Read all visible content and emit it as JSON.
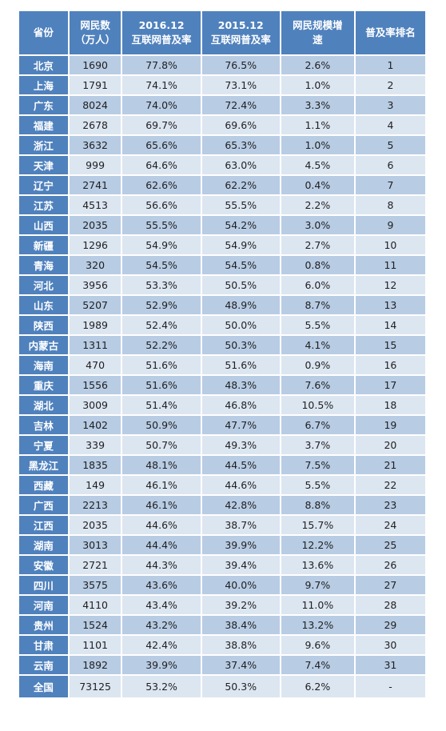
{
  "chart_data": {
    "type": "table",
    "headers": [
      [
        "省份"
      ],
      [
        "网民数",
        "（万人）"
      ],
      [
        "2016.12",
        "互联网普及率"
      ],
      [
        "2015.12",
        "互联网普及率"
      ],
      [
        "网民规模增",
        "速"
      ],
      [
        "普及率排名"
      ]
    ],
    "rows": [
      [
        "北京",
        "1690",
        "77.8%",
        "76.5%",
        "2.6%",
        "1"
      ],
      [
        "上海",
        "1791",
        "74.1%",
        "73.1%",
        "1.0%",
        "2"
      ],
      [
        "广东",
        "8024",
        "74.0%",
        "72.4%",
        "3.3%",
        "3"
      ],
      [
        "福建",
        "2678",
        "69.7%",
        "69.6%",
        "1.1%",
        "4"
      ],
      [
        "浙江",
        "3632",
        "65.6%",
        "65.3%",
        "1.0%",
        "5"
      ],
      [
        "天津",
        "999",
        "64.6%",
        "63.0%",
        "4.5%",
        "6"
      ],
      [
        "辽宁",
        "2741",
        "62.6%",
        "62.2%",
        "0.4%",
        "7"
      ],
      [
        "江苏",
        "4513",
        "56.6%",
        "55.5%",
        "2.2%",
        "8"
      ],
      [
        "山西",
        "2035",
        "55.5%",
        "54.2%",
        "3.0%",
        "9"
      ],
      [
        "新疆",
        "1296",
        "54.9%",
        "54.9%",
        "2.7%",
        "10"
      ],
      [
        "青海",
        "320",
        "54.5%",
        "54.5%",
        "0.8%",
        "11"
      ],
      [
        "河北",
        "3956",
        "53.3%",
        "50.5%",
        "6.0%",
        "12"
      ],
      [
        "山东",
        "5207",
        "52.9%",
        "48.9%",
        "8.7%",
        "13"
      ],
      [
        "陕西",
        "1989",
        "52.4%",
        "50.0%",
        "5.5%",
        "14"
      ],
      [
        "内蒙古",
        "1311",
        "52.2%",
        "50.3%",
        "4.1%",
        "15"
      ],
      [
        "海南",
        "470",
        "51.6%",
        "51.6%",
        "0.9%",
        "16"
      ],
      [
        "重庆",
        "1556",
        "51.6%",
        "48.3%",
        "7.6%",
        "17"
      ],
      [
        "湖北",
        "3009",
        "51.4%",
        "46.8%",
        "10.5%",
        "18"
      ],
      [
        "吉林",
        "1402",
        "50.9%",
        "47.7%",
        "6.7%",
        "19"
      ],
      [
        "宁夏",
        "339",
        "50.7%",
        "49.3%",
        "3.7%",
        "20"
      ],
      [
        "黑龙江",
        "1835",
        "48.1%",
        "44.5%",
        "7.5%",
        "21"
      ],
      [
        "西藏",
        "149",
        "46.1%",
        "44.6%",
        "5.5%",
        "22"
      ],
      [
        "广西",
        "2213",
        "46.1%",
        "42.8%",
        "8.8%",
        "23"
      ],
      [
        "江西",
        "2035",
        "44.6%",
        "38.7%",
        "15.7%",
        "24"
      ],
      [
        "湖南",
        "3013",
        "44.4%",
        "39.9%",
        "12.2%",
        "25"
      ],
      [
        "安徽",
        "2721",
        "44.3%",
        "39.4%",
        "13.6%",
        "26"
      ],
      [
        "四川",
        "3575",
        "43.6%",
        "40.0%",
        "9.7%",
        "27"
      ],
      [
        "河南",
        "4110",
        "43.4%",
        "39.2%",
        "11.0%",
        "28"
      ],
      [
        "贵州",
        "1524",
        "43.2%",
        "38.4%",
        "13.2%",
        "29"
      ],
      [
        "甘肃",
        "1101",
        "42.4%",
        "38.8%",
        "9.6%",
        "30"
      ],
      [
        "云南",
        "1892",
        "39.9%",
        "37.4%",
        "7.4%",
        "31"
      ]
    ],
    "total_row": [
      "全国",
      "73125",
      "53.2%",
      "50.3%",
      "6.2%",
      "-"
    ]
  },
  "colors": {
    "header_bg": "#4f81bd",
    "row_dark": "#b8cce4",
    "row_light": "#dce6f1"
  }
}
